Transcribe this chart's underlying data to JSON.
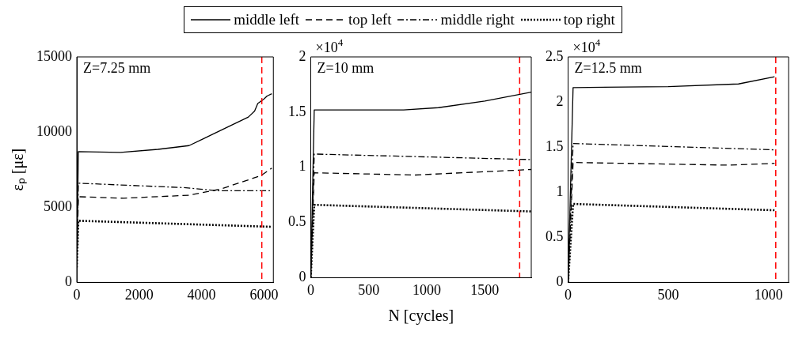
{
  "chart_data": [
    {
      "type": "line",
      "ylabel": "εₚ [με]",
      "xlim": [
        0,
        6300
      ],
      "xticks": [
        0,
        2000,
        4000,
        6000
      ],
      "ylim": [
        0,
        15000
      ],
      "yticks": [
        0,
        5000,
        10000,
        15000
      ],
      "legend": "top",
      "annotations": [
        "Z=7.25 mm"
      ],
      "ref_lines": [
        {
          "axis": "x",
          "value": 5930,
          "color": "#ff0000",
          "line_style": "dashed"
        }
      ],
      "series": [
        {
          "name": "middle left",
          "color": "#000000",
          "line_style": "solid",
          "x": [
            0,
            50,
            1400,
            2600,
            3600,
            4500,
            5500,
            5700,
            5800,
            6000,
            6100,
            6250
          ],
          "values": [
            1000,
            8700,
            8650,
            8850,
            9100,
            10000,
            11000,
            11400,
            11900,
            12200,
            12400,
            12550
          ]
        },
        {
          "name": "top left",
          "color": "#000000",
          "line_style": "dashed",
          "x": [
            0,
            50,
            1500,
            3600,
            4600,
            5900,
            6250
          ],
          "values": [
            1000,
            5700,
            5600,
            5800,
            6200,
            7100,
            7600
          ]
        },
        {
          "name": "middle right",
          "color": "#000000",
          "line_style": "dashdot",
          "x": [
            0,
            50,
            3500,
            4500,
            6250
          ],
          "values": [
            1000,
            6600,
            6300,
            6100,
            6100
          ]
        },
        {
          "name": "top right",
          "color": "#000000",
          "line_style": "dotted",
          "x": [
            0,
            50,
            6250
          ],
          "values": [
            1000,
            4100,
            3700
          ]
        }
      ]
    },
    {
      "type": "line",
      "xlabel": "N [cycles]",
      "xlim": [
        0,
        1900
      ],
      "xticks": [
        0,
        500,
        1000,
        1500
      ],
      "ylim": [
        0,
        2
      ],
      "yticks": [
        0,
        0.5,
        1,
        1.5,
        2
      ],
      "annotations": [
        "Z=10 mm",
        "×10$^{4}$"
      ],
      "ref_lines": [
        {
          "axis": "x",
          "value": 1800,
          "color": "#ff0000",
          "line_style": "dashed"
        }
      ],
      "series": [
        {
          "color": "#000000",
          "line_style": "solid",
          "x": [
            0,
            30,
            800,
            1100,
            1500,
            1900
          ],
          "values": [
            0,
            1.52,
            1.52,
            1.54,
            1.6,
            1.68
          ]
        },
        {
          "color": "#000000",
          "line_style": "dashed",
          "x": [
            0,
            30,
            900,
            1900
          ],
          "values": [
            0,
            0.95,
            0.93,
            0.98
          ]
        },
        {
          "color": "#000000",
          "line_style": "dashdot",
          "x": [
            0,
            30,
            1900
          ],
          "values": [
            0,
            1.12,
            1.07
          ]
        },
        {
          "color": "#000000",
          "line_style": "dotted",
          "x": [
            0,
            30,
            1900
          ],
          "values": [
            0,
            0.66,
            0.6
          ]
        }
      ]
    },
    {
      "type": "line",
      "xlim": [
        0,
        1100
      ],
      "xticks": [
        0,
        500,
        1000
      ],
      "ylim": [
        0,
        2.5
      ],
      "yticks": [
        0,
        0.5,
        1,
        1.5,
        2,
        2.5
      ],
      "annotations": [
        "Z=12.5 mm",
        "×10$^{4}$"
      ],
      "ref_lines": [
        {
          "axis": "x",
          "value": 1036,
          "color": "#ff0000",
          "line_style": "dashed"
        }
      ],
      "series": [
        {
          "color": "#000000",
          "line_style": "solid",
          "x": [
            0,
            25,
            500,
            850,
            1030
          ],
          "values": [
            0,
            2.16,
            2.17,
            2.2,
            2.28
          ]
        },
        {
          "color": "#000000",
          "line_style": "dashed",
          "x": [
            0,
            25,
            800,
            1030
          ],
          "values": [
            0,
            1.33,
            1.3,
            1.32
          ]
        },
        {
          "color": "#000000",
          "line_style": "dashdot",
          "x": [
            0,
            25,
            1030
          ],
          "values": [
            0,
            1.54,
            1.47
          ]
        },
        {
          "color": "#000000",
          "line_style": "dotted",
          "x": [
            0,
            25,
            1030
          ],
          "values": [
            0,
            0.87,
            0.8
          ]
        }
      ]
    }
  ]
}
